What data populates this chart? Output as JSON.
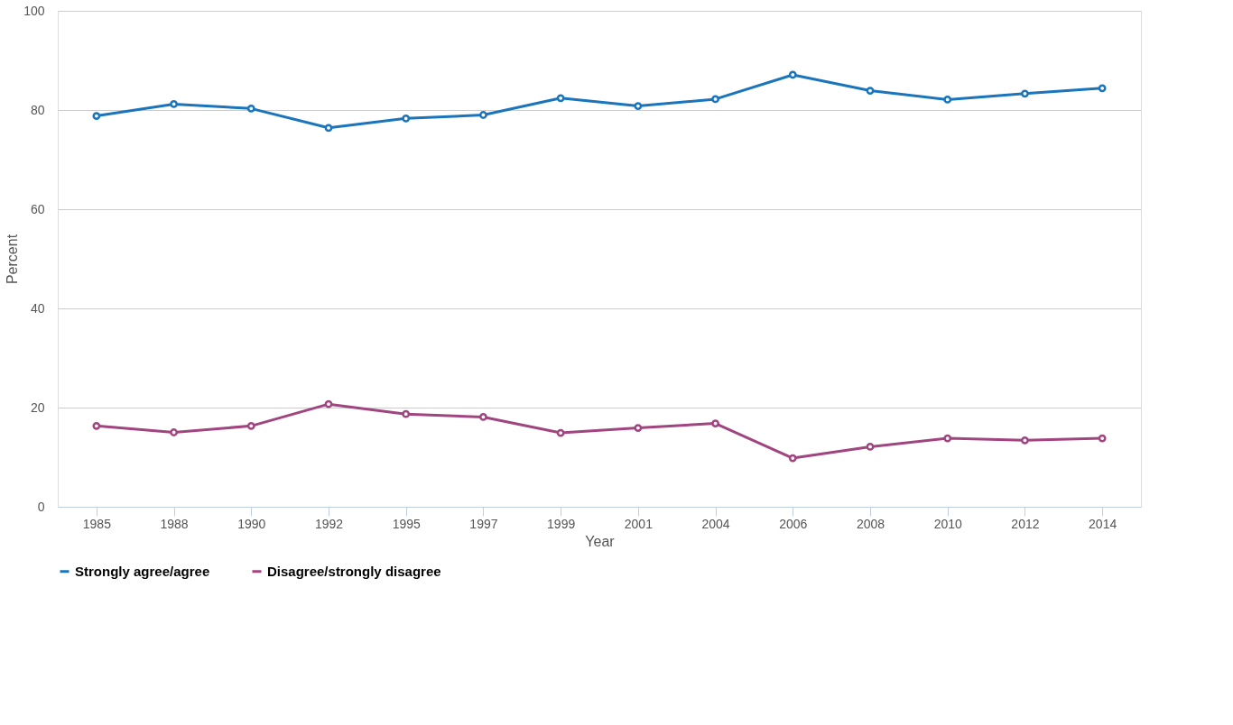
{
  "chart_data": {
    "type": "line",
    "xlabel": "Year",
    "ylabel": "Percent",
    "categories": [
      "1985",
      "1988",
      "1990",
      "1992",
      "1995",
      "1997",
      "1999",
      "2001",
      "2004",
      "2006",
      "2008",
      "2010",
      "2012",
      "2014"
    ],
    "series": [
      {
        "name": "Strongly agree/agree",
        "color": "#1a75bc",
        "values": [
          78.8,
          81.2,
          80.3,
          76.4,
          78.3,
          79,
          82.4,
          80.8,
          82.2,
          87.1,
          83.9,
          82.1,
          83.3,
          84.4
        ]
      },
      {
        "name": "Disagree/strongly disagree",
        "color": "#a0457f",
        "values": [
          16.3,
          15.0,
          16.3,
          20.7,
          18.7,
          18.1,
          14.9,
          15.9,
          16.8,
          9.8,
          12.1,
          13.8,
          13.4,
          13.8
        ]
      }
    ],
    "ylim": [
      0,
      100
    ],
    "yticks": [
      0,
      20,
      40,
      60,
      80,
      100
    ],
    "grid": "y",
    "legend": "bottom",
    "marker": "circle",
    "line_style": "solid"
  }
}
